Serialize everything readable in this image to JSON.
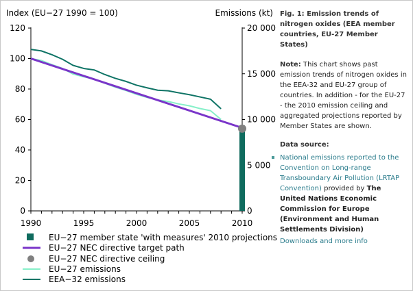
{
  "figure": {
    "title": "Fig. 1: Emission trends of nitrogen oxides (EEA member countries, EU-27 Member States)",
    "note_label": "Note:",
    "note_text": "This chart shows past emission trends of nitrogen oxides in the EEA-32 and EU-27 group of countries. In addition - for the EU-27 - the 2010 emission ceiling and aggregated projections reported by Member States are shown.",
    "data_source_label": "Data source:",
    "data_source_link": "National emissions reported to the Convention on Long-range Transboundary Air Pollution (LRTAP Convention)",
    "data_source_provided_by": "provided by",
    "data_source_org": "The United Nations Economic Commission for Europe (Environment and Human Settlements Division)",
    "downloads_link": "Downloads and more info"
  },
  "colors": {
    "eea32": "#0f7466",
    "eu27": "#86f0c9",
    "target": "#7a35c9",
    "ceiling": "#808080",
    "projection_bar": "#0f6b5e"
  },
  "chart_data": {
    "type": "line",
    "xlabel": "",
    "ylabel_left": "Index (EU−27 1990 = 100)",
    "ylabel_right": "Emissions (kt)",
    "xlim": [
      1990,
      2010
    ],
    "ylim_left": [
      0,
      120
    ],
    "ylim_right": [
      0,
      20000
    ],
    "x_ticks": [
      "1990",
      "1995",
      "2000",
      "2005",
      "2010"
    ],
    "y_ticks_left": [
      "0",
      "20",
      "40",
      "60",
      "80",
      "100",
      "120"
    ],
    "y_ticks_right": [
      "0",
      "5 000",
      "10 000",
      "15 000",
      "20 000"
    ],
    "grid": false,
    "legend_position": "bottom-left",
    "series": [
      {
        "name": "EEA−32 emissions",
        "x": [
          1990,
          1991,
          1992,
          1993,
          1994,
          1995,
          1996,
          1997,
          1998,
          1999,
          2000,
          2001,
          2002,
          2003,
          2004,
          2005,
          2006,
          2007,
          2008
        ],
        "values": [
          106,
          105,
          102.5,
          99.5,
          95.5,
          93.5,
          92.5,
          89.5,
          87,
          85,
          82.5,
          80.8,
          79.2,
          78.8,
          77.5,
          76.3,
          74.8,
          73.3,
          67
        ]
      },
      {
        "name": "EU−27 emissions",
        "x": [
          1990,
          1991,
          1992,
          1993,
          1994,
          1995,
          1996,
          1997,
          1998,
          1999,
          2000,
          2001,
          2002,
          2003,
          2004,
          2005,
          2006,
          2007,
          2008
        ],
        "values": [
          100,
          98.7,
          96,
          93.5,
          89.8,
          88,
          86.5,
          83.8,
          81.2,
          79,
          76.5,
          74.5,
          72.8,
          71.8,
          70.2,
          69,
          67.2,
          65.8,
          60
        ]
      },
      {
        "name": "EU−27 NEC directive target path",
        "x": [
          1990,
          2010
        ],
        "values": [
          100,
          54.5
        ]
      }
    ],
    "ceiling": {
      "name": "EU−27 NEC directive ceiling",
      "x": 2010,
      "value": 54
    },
    "projection": {
      "name": "EU−27 member state 'with measures' 2010 projections",
      "x": 2010,
      "value_kt": 9350
    },
    "legend": [
      "EU−27 member state 'with measures' 2010 projections",
      "EU−27 NEC directive target path",
      "EU−27 NEC directive ceiling",
      "EU−27 emissions",
      "EEA−32 emissions"
    ]
  }
}
